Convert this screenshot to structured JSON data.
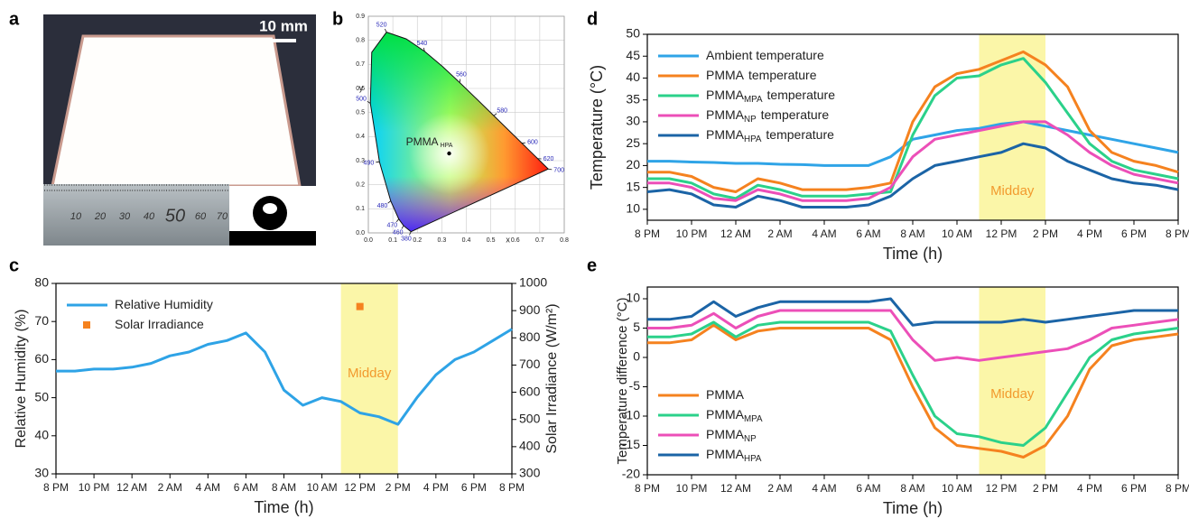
{
  "photo": {
    "label": "a",
    "scale_bar": "10 mm",
    "ruler_labels": [
      "10",
      "20",
      "30",
      "40",
      "50",
      "60",
      "70"
    ]
  },
  "chart_data": [
    {
      "type": "scatter",
      "label": "b",
      "xlabel": "x",
      "ylabel": "y",
      "xlim": [
        0,
        0.8
      ],
      "ylim": [
        0,
        0.9
      ],
      "grid": true,
      "xticks": [
        {
          "value": 0,
          "label": "0.0"
        },
        {
          "value": 0.1,
          "label": "0.1"
        },
        {
          "value": 0.2,
          "label": "0.2"
        },
        {
          "value": 0.3,
          "label": "0.3"
        },
        {
          "value": 0.4,
          "label": "0.4"
        },
        {
          "value": 0.5,
          "label": "0.5"
        },
        {
          "value": 0.6,
          "label": "0.6"
        },
        {
          "value": 0.7,
          "label": "0.7"
        },
        {
          "value": 0.8,
          "label": "0.8"
        }
      ],
      "yticks": [
        {
          "value": 0,
          "label": "0.0"
        },
        {
          "value": 0.1,
          "label": "0.1"
        },
        {
          "value": 0.2,
          "label": "0.2"
        },
        {
          "value": 0.3,
          "label": "0.3"
        },
        {
          "value": 0.4,
          "label": "0.4"
        },
        {
          "value": 0.5,
          "label": "0.5"
        },
        {
          "value": 0.6,
          "label": "0.6"
        },
        {
          "value": 0.7,
          "label": "0.7"
        },
        {
          "value": 0.8,
          "label": "0.8"
        },
        {
          "value": 0.9,
          "label": "0.9"
        }
      ],
      "locus": {
        "x": [
          0.1741,
          0.144,
          0.1241,
          0.0913,
          0.0454,
          0.0082,
          0.0139,
          0.0743,
          0.1547,
          0.2296,
          0.3016,
          0.3731,
          0.4441,
          0.5125,
          0.5752,
          0.627,
          0.6658,
          0.6915,
          0.7347
        ],
        "y": [
          0.005,
          0.0297,
          0.0578,
          0.1327,
          0.295,
          0.5384,
          0.7502,
          0.8338,
          0.8059,
          0.7543,
          0.6923,
          0.6245,
          0.5547,
          0.4866,
          0.4242,
          0.3725,
          0.334,
          0.3083,
          0.2653
        ]
      },
      "wavelength_labels": [
        {
          "wavelength": 380,
          "x": 0.1741,
          "y": 0.005
        },
        {
          "wavelength": 460,
          "x": 0.144,
          "y": 0.0297
        },
        {
          "wavelength": 470,
          "x": 0.1241,
          "y": 0.0578
        },
        {
          "wavelength": 480,
          "x": 0.0913,
          "y": 0.1327
        },
        {
          "wavelength": 490,
          "x": 0.0454,
          "y": 0.295
        },
        {
          "wavelength": 500,
          "x": 0.0082,
          "y": 0.5384
        },
        {
          "wavelength": 520,
          "x": 0.0743,
          "y": 0.8338
        },
        {
          "wavelength": 540,
          "x": 0.2296,
          "y": 0.7543
        },
        {
          "wavelength": 560,
          "x": 0.3731,
          "y": 0.6245
        },
        {
          "wavelength": 580,
          "x": 0.5125,
          "y": 0.4866
        },
        {
          "wavelength": 600,
          "x": 0.627,
          "y": 0.3725
        },
        {
          "wavelength": 620,
          "x": 0.6915,
          "y": 0.3083
        },
        {
          "wavelength": 700,
          "x": 0.7347,
          "y": 0.2653
        }
      ],
      "points": [
        {
          "name": "PMMA",
          "subscript": "HPA",
          "x": 0.33,
          "y": 0.33,
          "color": "#000000"
        }
      ]
    },
    {
      "type": "line",
      "label": "c",
      "xlabel": "Time (h)",
      "ylabel": "Relative Humidity (%)",
      "y2label": "Solar Irradiance (W/m²)",
      "xlim": [
        0,
        24
      ],
      "ylim": [
        30,
        80
      ],
      "y2lim": [
        300,
        1000
      ],
      "legend": "upper left",
      "xticks": [
        {
          "value": 0,
          "label": "8 PM"
        },
        {
          "value": 2,
          "label": "10 PM"
        },
        {
          "value": 4,
          "label": "12 AM"
        },
        {
          "value": 6,
          "label": "2 AM"
        },
        {
          "value": 8,
          "label": "4 AM"
        },
        {
          "value": 10,
          "label": "6 AM"
        },
        {
          "value": 12,
          "label": "8 AM"
        },
        {
          "value": 14,
          "label": "10 AM"
        },
        {
          "value": 16,
          "label": "12 PM"
        },
        {
          "value": 18,
          "label": "2 PM"
        },
        {
          "value": 20,
          "label": "4 PM"
        },
        {
          "value": 22,
          "label": "6 PM"
        },
        {
          "value": 24,
          "label": "8 PM"
        }
      ],
      "yticks": [
        30,
        40,
        50,
        60,
        70,
        80
      ],
      "y2ticks": [
        300,
        400,
        500,
        600,
        700,
        800,
        900,
        1000
      ],
      "highlight": {
        "range": [
          15,
          18
        ],
        "label": "Midday",
        "color": "#fbf6a8",
        "text_color": "#f29a2e"
      },
      "x": [
        0,
        1,
        2,
        3,
        4,
        5,
        6,
        7,
        8,
        9,
        10,
        11,
        12,
        13,
        14,
        15,
        16,
        17,
        18,
        19,
        20,
        21,
        22,
        23,
        24
      ],
      "series": [
        {
          "name": "Relative Humidity",
          "color": "#2ea3e6",
          "values": [
            57,
            57,
            57.5,
            57.5,
            58,
            59,
            61,
            62,
            64,
            65,
            67,
            62,
            52,
            48,
            50,
            49,
            46,
            45,
            43,
            50,
            56,
            60,
            62,
            65,
            68
          ]
        },
        {
          "name": "Solar Irradiance",
          "color": "#f5821f",
          "axis": "y2",
          "marker": "square",
          "x": [
            16
          ],
          "values": [
            915
          ]
        }
      ]
    },
    {
      "type": "line",
      "label": "d",
      "xlabel": "Time (h)",
      "ylabel": "Temperature (°C)",
      "xlim": [
        0,
        24
      ],
      "ylim": [
        7.5,
        50
      ],
      "legend": "upper left",
      "xticks": [
        {
          "value": 0,
          "label": "8 PM"
        },
        {
          "value": 2,
          "label": "10 PM"
        },
        {
          "value": 4,
          "label": "12 AM"
        },
        {
          "value": 6,
          "label": "2 AM"
        },
        {
          "value": 8,
          "label": "4 AM"
        },
        {
          "value": 10,
          "label": "6 AM"
        },
        {
          "value": 12,
          "label": "8 AM"
        },
        {
          "value": 14,
          "label": "10 AM"
        },
        {
          "value": 16,
          "label": "12 PM"
        },
        {
          "value": 18,
          "label": "2 PM"
        },
        {
          "value": 20,
          "label": "4 PM"
        },
        {
          "value": 22,
          "label": "6 PM"
        },
        {
          "value": 24,
          "label": "8 PM"
        }
      ],
      "yticks": [
        10,
        15,
        20,
        25,
        30,
        35,
        40,
        45,
        50
      ],
      "highlight": {
        "range": [
          15,
          18
        ],
        "label": "Midday",
        "color": "#fbf6a8",
        "text_color": "#f29a2e"
      },
      "x": [
        0,
        1,
        2,
        3,
        4,
        5,
        6,
        7,
        8,
        9,
        10,
        11,
        12,
        13,
        14,
        15,
        16,
        17,
        18,
        19,
        20,
        21,
        22,
        23,
        24
      ],
      "series": [
        {
          "name": "Ambient temperature",
          "color": "#2fa4e7",
          "values": [
            21,
            21,
            20.8,
            20.7,
            20.5,
            20.5,
            20.3,
            20.2,
            20,
            20,
            20,
            22,
            26,
            27,
            28,
            28.5,
            29.5,
            30,
            29,
            28,
            27,
            26,
            25,
            24,
            23
          ]
        },
        {
          "name": "PMMA",
          "suffix": "temperature",
          "color": "#f5821f",
          "values": [
            18.5,
            18.5,
            17.5,
            15,
            14,
            17,
            16,
            14.5,
            14.5,
            14.5,
            15,
            16,
            30,
            38,
            41,
            42,
            44,
            46,
            43,
            38,
            28,
            23,
            21,
            20,
            18.5
          ]
        },
        {
          "name": "PMMA",
          "subscript": "MPA",
          "suffix": "temperature",
          "color": "#2bd18a",
          "values": [
            17,
            17,
            16,
            13.5,
            12.5,
            15.5,
            14.5,
            13,
            13,
            13,
            13.5,
            14,
            27,
            36,
            40,
            40.5,
            43,
            44.5,
            39,
            32,
            25,
            21,
            19,
            18,
            17
          ]
        },
        {
          "name": "PMMA",
          "subscript": "NP",
          "suffix": "temperature",
          "color": "#ec4fb8",
          "values": [
            16,
            16,
            15,
            12.5,
            12,
            14.5,
            13.5,
            12,
            12,
            12,
            12.5,
            15,
            22,
            26,
            27,
            28,
            29,
            30,
            30,
            27,
            23,
            20,
            18,
            17,
            16
          ]
        },
        {
          "name": "PMMA",
          "subscript": "HPA",
          "suffix": "temperature",
          "color": "#1b64a6",
          "values": [
            14,
            14.5,
            13.5,
            11,
            10.5,
            13,
            12,
            10.5,
            10.5,
            10.5,
            11,
            13,
            17,
            20,
            21,
            22,
            23,
            25,
            24,
            21,
            19,
            17,
            16,
            15.5,
            14.5
          ]
        }
      ]
    },
    {
      "type": "line",
      "label": "e",
      "xlabel": "Time (h)",
      "ylabel": "Temperature difference (°C)",
      "xlim": [
        0,
        24
      ],
      "ylim": [
        -20,
        12
      ],
      "legend": "lower left",
      "xticks": [
        {
          "value": 0,
          "label": "8 PM"
        },
        {
          "value": 2,
          "label": "10 PM"
        },
        {
          "value": 4,
          "label": "12 AM"
        },
        {
          "value": 6,
          "label": "2 AM"
        },
        {
          "value": 8,
          "label": "4 AM"
        },
        {
          "value": 10,
          "label": "6 AM"
        },
        {
          "value": 12,
          "label": "8 AM"
        },
        {
          "value": 14,
          "label": "10 AM"
        },
        {
          "value": 16,
          "label": "12 PM"
        },
        {
          "value": 18,
          "label": "2 PM"
        },
        {
          "value": 20,
          "label": "4 PM"
        },
        {
          "value": 22,
          "label": "6 PM"
        },
        {
          "value": 24,
          "label": "8 PM"
        }
      ],
      "yticks": [
        -20,
        -15,
        -10,
        -5,
        0,
        5,
        10
      ],
      "highlight": {
        "range": [
          15,
          18
        ],
        "label": "Midday",
        "color": "#fbf6a8",
        "text_color": "#f29a2e"
      },
      "x": [
        0,
        1,
        2,
        3,
        4,
        5,
        6,
        7,
        8,
        9,
        10,
        11,
        12,
        13,
        14,
        15,
        16,
        17,
        18,
        19,
        20,
        21,
        22,
        23,
        24
      ],
      "series": [
        {
          "name": "PMMA",
          "color": "#f5821f",
          "values": [
            2.5,
            2.5,
            3,
            5.5,
            3,
            4.5,
            5,
            5,
            5,
            5,
            5,
            3,
            -5,
            -12,
            -15,
            -15.5,
            -16,
            -17,
            -15,
            -10,
            -2,
            2,
            3,
            3.5,
            4
          ]
        },
        {
          "name": "PMMA",
          "subscript": "MPA",
          "color": "#2bd18a",
          "values": [
            3.5,
            3.5,
            4,
            6,
            3.5,
            5.5,
            6,
            6,
            6,
            6,
            6,
            4.5,
            -3,
            -10,
            -13,
            -13.5,
            -14.5,
            -15,
            -12,
            -6,
            0,
            3,
            4,
            4.5,
            5
          ]
        },
        {
          "name": "PMMA",
          "subscript": "NP",
          "color": "#ec4fb8",
          "values": [
            5,
            5,
            5.5,
            7.5,
            5,
            7,
            8,
            8,
            8,
            8,
            8,
            8,
            3,
            -0.5,
            0,
            -0.5,
            0,
            0.5,
            1,
            1.5,
            3,
            5,
            5.5,
            6,
            6.5
          ]
        },
        {
          "name": "PMMA",
          "subscript": "HPA",
          "color": "#1b64a6",
          "values": [
            6.5,
            6.5,
            7,
            9.5,
            7,
            8.5,
            9.5,
            9.5,
            9.5,
            9.5,
            9.5,
            10,
            5.5,
            6,
            6,
            6,
            6,
            6.5,
            6,
            6.5,
            7,
            7.5,
            8,
            8,
            8
          ]
        }
      ]
    }
  ]
}
